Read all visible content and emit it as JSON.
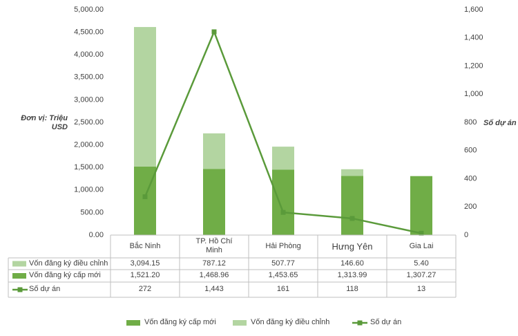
{
  "chart_data": {
    "type": "bar",
    "stacked": true,
    "y_label": "Đơn vị: Triệu USD",
    "y2_label": "Số dự án",
    "categories": [
      "Bắc Ninh",
      "TP. Hồ Chí Minh",
      "Hải Phòng",
      "Hưng Yên",
      "Gia Lai"
    ],
    "series": [
      {
        "name": "Vốn đăng ký cấp mới",
        "type": "bar",
        "color": "#70ad47",
        "values": [
          1521.2,
          1468.96,
          1453.65,
          1313.99,
          1307.27
        ],
        "value_labels": [
          "1,521.20",
          "1,468.96",
          "1,453.65",
          "1,313.99",
          "1,307.27"
        ]
      },
      {
        "name": "Vốn đăng ký điều chỉnh",
        "type": "bar",
        "color": "#b3d5a1",
        "values": [
          3094.15,
          787.12,
          507.77,
          146.6,
          5.4
        ],
        "value_labels": [
          "3,094.15",
          "787.12",
          "507.77",
          "146.60",
          "5.40"
        ]
      },
      {
        "name": "Số dự án",
        "type": "line",
        "axis": "y2",
        "color": "#5a9a3a",
        "values": [
          272,
          1443,
          161,
          118,
          13
        ],
        "value_labels": [
          "272",
          "1,443",
          "161",
          "118",
          "13"
        ]
      }
    ],
    "ylim": [
      0,
      5000
    ],
    "yticks": [
      {
        "value": 0,
        "label": "0.00"
      },
      {
        "value": 500,
        "label": "500.00"
      },
      {
        "value": 1000,
        "label": "1,000.00"
      },
      {
        "value": 1500,
        "label": "1,500.00"
      },
      {
        "value": 2000,
        "label": "2,000.00"
      },
      {
        "value": 2500,
        "label": "2,500.00"
      },
      {
        "value": 3000,
        "label": "3,000.00"
      },
      {
        "value": 3500,
        "label": "3,500.00"
      },
      {
        "value": 4000,
        "label": "4,000.00"
      },
      {
        "value": 4500,
        "label": "4,500.00"
      },
      {
        "value": 5000,
        "label": "5,000.00"
      }
    ],
    "y2lim": [
      0,
      1600
    ],
    "y2ticks": [
      0,
      200,
      400,
      600,
      800,
      {
        "value": 1000,
        "label": "1,000"
      },
      {
        "value": 1200,
        "label": "1,200"
      },
      {
        "value": 1400,
        "label": "1,400"
      },
      {
        "value": 1600,
        "label": "1,600"
      }
    ],
    "grid": false,
    "legend": "bottom"
  }
}
